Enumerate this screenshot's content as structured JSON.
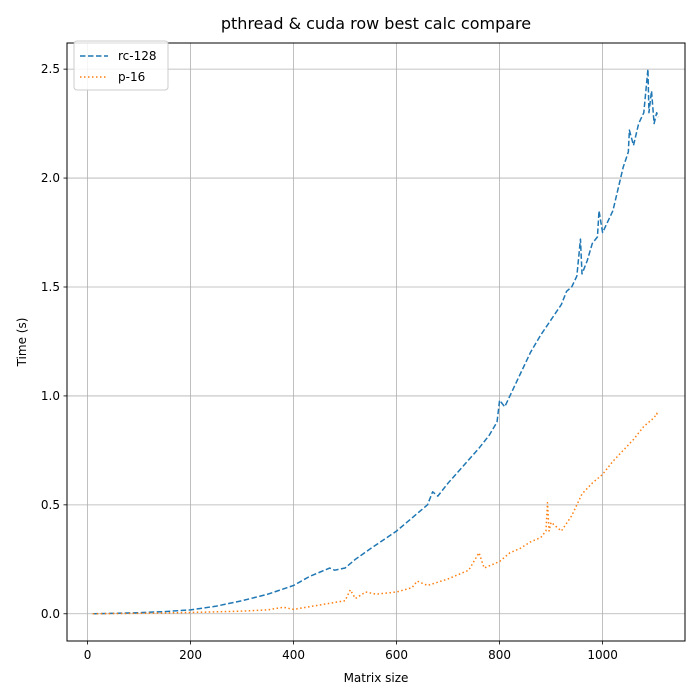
{
  "chart_data": {
    "type": "line",
    "title": "pthread & cuda row best calc compare",
    "xlabel": "Matrix size",
    "ylabel": "Time (s)",
    "xlim": [
      -40,
      1160
    ],
    "ylim": [
      -0.125,
      2.62
    ],
    "xticks": [
      0,
      200,
      400,
      600,
      800,
      1000
    ],
    "yticks": [
      0.0,
      0.5,
      1.0,
      1.5,
      2.0,
      2.5
    ],
    "xtick_labels": [
      "0",
      "200",
      "400",
      "600",
      "800",
      "1000"
    ],
    "ytick_labels": [
      "0.0",
      "0.5",
      "1.0",
      "1.5",
      "2.0",
      "2.5"
    ],
    "grid": true,
    "legend_position": "top-left",
    "series": [
      {
        "name": "rc-128",
        "color": "#1f77b4",
        "line_style": "dashed",
        "x": [
          10,
          50,
          100,
          150,
          200,
          250,
          300,
          350,
          400,
          430,
          460,
          470,
          480,
          500,
          520,
          550,
          600,
          640,
          660,
          670,
          680,
          700,
          730,
          760,
          780,
          795,
          800,
          810,
          840,
          850,
          860,
          880,
          900,
          920,
          930,
          940,
          950,
          957,
          960,
          970,
          980,
          990,
          993,
          1000,
          1020,
          1030,
          1040,
          1050,
          1052,
          1060,
          1070,
          1080,
          1088,
          1090,
          1095,
          1100,
          1105,
          1108
        ],
        "values": [
          0.0,
          0.002,
          0.005,
          0.01,
          0.018,
          0.035,
          0.06,
          0.09,
          0.13,
          0.17,
          0.2,
          0.21,
          0.2,
          0.21,
          0.25,
          0.3,
          0.38,
          0.46,
          0.5,
          0.56,
          0.54,
          0.6,
          0.68,
          0.76,
          0.82,
          0.88,
          0.98,
          0.95,
          1.1,
          1.15,
          1.2,
          1.28,
          1.35,
          1.42,
          1.48,
          1.5,
          1.55,
          1.72,
          1.56,
          1.62,
          1.7,
          1.73,
          1.85,
          1.75,
          1.85,
          1.95,
          2.05,
          2.12,
          2.22,
          2.15,
          2.25,
          2.3,
          2.5,
          2.3,
          2.4,
          2.25,
          2.3,
          2.28
        ]
      },
      {
        "name": "p-16",
        "color": "#ff7f0e",
        "line_style": "dotted",
        "x": [
          10,
          50,
          100,
          150,
          200,
          250,
          300,
          350,
          380,
          400,
          450,
          500,
          510,
          520,
          540,
          560,
          600,
          630,
          640,
          660,
          700,
          740,
          760,
          770,
          780,
          800,
          820,
          840,
          860,
          880,
          890,
          893,
          896,
          900,
          910,
          920,
          940,
          960,
          980,
          1000,
          1020,
          1040,
          1060,
          1080,
          1090,
          1100,
          1105,
          1108
        ],
        "values": [
          0.0,
          0.001,
          0.002,
          0.004,
          0.006,
          0.009,
          0.012,
          0.018,
          0.03,
          0.02,
          0.04,
          0.06,
          0.11,
          0.07,
          0.1,
          0.09,
          0.1,
          0.12,
          0.15,
          0.13,
          0.16,
          0.2,
          0.28,
          0.21,
          0.22,
          0.24,
          0.28,
          0.3,
          0.33,
          0.35,
          0.38,
          0.51,
          0.38,
          0.42,
          0.4,
          0.38,
          0.45,
          0.55,
          0.6,
          0.64,
          0.7,
          0.75,
          0.8,
          0.86,
          0.88,
          0.9,
          0.92,
          0.91
        ]
      }
    ]
  }
}
